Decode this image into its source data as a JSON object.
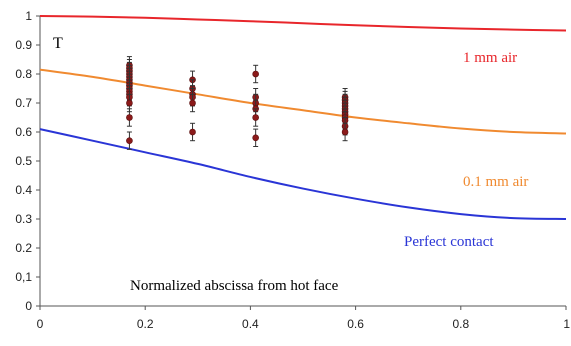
{
  "chart_data": {
    "type": "line",
    "title": "",
    "xlabel": "Normalized abscissa from hot face",
    "ylabel": "T",
    "xlim": [
      0,
      1
    ],
    "ylim": [
      0,
      1
    ],
    "grid": false,
    "x_ticks": [
      "0",
      "0.2",
      "0.4",
      "0.6",
      "0.8",
      "1"
    ],
    "y_ticks": [
      "0",
      "0,1",
      "0.2",
      "0.3",
      "0.4",
      "0.5",
      "0.6",
      "0.7",
      "0.8",
      "0.9",
      "1"
    ],
    "series": [
      {
        "name": "1 mm air",
        "color": "#e8262b",
        "x": [
          0,
          0.1,
          0.2,
          0.3,
          0.4,
          0.5,
          0.6,
          0.7,
          0.8,
          0.9,
          1.0
        ],
        "y": [
          1.0,
          0.998,
          0.994,
          0.988,
          0.982,
          0.975,
          0.968,
          0.962,
          0.957,
          0.953,
          0.95
        ]
      },
      {
        "name": "0.1 mm air",
        "color": "#f08a30",
        "x": [
          0,
          0.1,
          0.2,
          0.3,
          0.4,
          0.5,
          0.6,
          0.7,
          0.8,
          0.9,
          1.0
        ],
        "y": [
          0.815,
          0.79,
          0.76,
          0.73,
          0.7,
          0.675,
          0.65,
          0.63,
          0.612,
          0.6,
          0.595
        ]
      },
      {
        "name": "Perfect contact",
        "color": "#2a35d6",
        "x": [
          0,
          0.1,
          0.2,
          0.3,
          0.4,
          0.5,
          0.6,
          0.7,
          0.8,
          0.9,
          1.0
        ],
        "y": [
          0.61,
          0.57,
          0.53,
          0.49,
          0.445,
          0.405,
          0.37,
          0.34,
          0.317,
          0.303,
          0.3
        ]
      },
      {
        "name": "",
        "kind": "scatter",
        "color": "#8b1a1a",
        "x": [
          0.17,
          0.17,
          0.17,
          0.17,
          0.17,
          0.17,
          0.17,
          0.17,
          0.17,
          0.17,
          0.17,
          0.17,
          0.17,
          0.17,
          0.17,
          0.29,
          0.29,
          0.29,
          0.29,
          0.29,
          0.29,
          0.41,
          0.41,
          0.41,
          0.41,
          0.41,
          0.41,
          0.58,
          0.58,
          0.58,
          0.58,
          0.58,
          0.58,
          0.58,
          0.58,
          0.58,
          0.58,
          0.58
        ],
        "y": [
          0.83,
          0.82,
          0.81,
          0.8,
          0.79,
          0.78,
          0.77,
          0.76,
          0.75,
          0.74,
          0.73,
          0.72,
          0.7,
          0.65,
          0.57,
          0.78,
          0.75,
          0.73,
          0.72,
          0.7,
          0.6,
          0.8,
          0.72,
          0.7,
          0.68,
          0.65,
          0.58,
          0.72,
          0.71,
          0.7,
          0.69,
          0.68,
          0.67,
          0.66,
          0.65,
          0.64,
          0.62,
          0.6
        ],
        "error": 0.03
      }
    ],
    "annotations": [
      {
        "text": "T",
        "color": "#000000"
      },
      {
        "text": "1 mm air",
        "color": "#e8262b"
      },
      {
        "text": "0.1 mm air",
        "color": "#f08a30"
      },
      {
        "text": "Perfect contact",
        "color": "#2a35d6"
      }
    ]
  }
}
